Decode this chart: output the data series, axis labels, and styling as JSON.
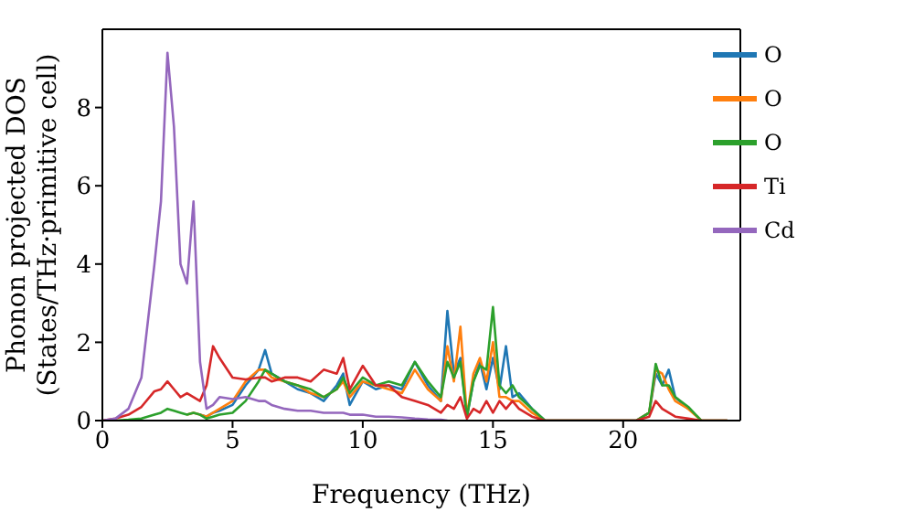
{
  "chart_data": {
    "type": "line",
    "xlabel": "Frequency (THz)",
    "ylabel": "Phonon projected DOS\n(States/THz·primitive cell)",
    "x": [
      0,
      0.5,
      1,
      1.5,
      2,
      2.25,
      2.5,
      2.75,
      3,
      3.25,
      3.5,
      3.75,
      4,
      4.25,
      4.5,
      5,
      5.5,
      6,
      6.25,
      6.5,
      7,
      7.5,
      8,
      8.5,
      9,
      9.25,
      9.5,
      10,
      10.5,
      11,
      11.5,
      12,
      12.5,
      13,
      13.25,
      13.5,
      13.75,
      14,
      14.25,
      14.5,
      14.75,
      15,
      15.25,
      15.5,
      15.75,
      16,
      16.5,
      17,
      18,
      20,
      20.5,
      21,
      21.25,
      21.5,
      21.75,
      22,
      22.5,
      23,
      24
    ],
    "series": [
      {
        "name": "O",
        "color": "#1f77b4",
        "values": [
          null,
          null,
          null,
          null,
          null,
          null,
          null,
          null,
          null,
          null,
          null,
          0.15,
          0.1,
          0.2,
          0.25,
          0.4,
          0.9,
          1.3,
          1.8,
          1.2,
          1.0,
          0.8,
          0.7,
          0.5,
          0.9,
          1.2,
          0.4,
          1.0,
          0.8,
          0.9,
          0.8,
          1.5,
          0.9,
          0.5,
          2.8,
          1.2,
          1.6,
          0.1,
          1.0,
          1.5,
          0.8,
          1.6,
          0.8,
          1.9,
          0.6,
          0.7,
          0.3,
          0,
          0,
          0,
          0,
          0.2,
          1.2,
          0.9,
          1.3,
          0.6,
          0.3,
          null,
          null
        ]
      },
      {
        "name": "O",
        "color": "#ff7f0e",
        "values": [
          null,
          null,
          null,
          null,
          null,
          null,
          null,
          null,
          null,
          0.15,
          0.2,
          0.15,
          0.1,
          0.2,
          0.3,
          0.5,
          1.0,
          1.3,
          1.3,
          1.1,
          1.0,
          0.9,
          0.7,
          0.6,
          0.8,
          1.0,
          0.6,
          1.0,
          0.9,
          0.8,
          0.7,
          1.3,
          0.8,
          0.5,
          1.9,
          1.0,
          2.4,
          0.1,
          1.2,
          1.6,
          1.0,
          2.0,
          0.6,
          0.6,
          0.5,
          0.5,
          0.2,
          0,
          0,
          0,
          0,
          0.2,
          1.3,
          1.2,
          0.8,
          0.5,
          0.3,
          0,
          0
        ]
      },
      {
        "name": "O",
        "color": "#2ca02c",
        "values": [
          0,
          0,
          0.02,
          0.05,
          0.15,
          0.2,
          0.3,
          0.25,
          0.2,
          0.15,
          0.2,
          0.15,
          0.05,
          0.1,
          0.15,
          0.2,
          0.5,
          1.0,
          1.3,
          1.2,
          1.0,
          0.9,
          0.8,
          0.6,
          0.8,
          1.1,
          0.7,
          1.1,
          0.9,
          1.0,
          0.9,
          1.5,
          1.0,
          0.6,
          1.5,
          1.1,
          1.5,
          0.1,
          1.0,
          1.4,
          1.3,
          2.9,
          0.9,
          0.7,
          0.9,
          0.6,
          0.3,
          0,
          0,
          0,
          0,
          0.2,
          1.45,
          0.9,
          0.9,
          0.6,
          0.35,
          0,
          0
        ]
      },
      {
        "name": "Ti",
        "color": "#d62728",
        "values": [
          0,
          0.05,
          0.15,
          0.35,
          0.75,
          0.8,
          1.0,
          0.8,
          0.6,
          0.7,
          0.6,
          0.5,
          0.9,
          1.9,
          1.6,
          1.1,
          1.05,
          1.1,
          1.1,
          1.0,
          1.1,
          1.1,
          1.0,
          1.3,
          1.2,
          1.6,
          0.8,
          1.4,
          0.9,
          0.9,
          0.6,
          0.5,
          0.4,
          0.2,
          0.4,
          0.3,
          0.6,
          0.05,
          0.3,
          0.2,
          0.5,
          0.2,
          0.5,
          0.3,
          0.5,
          0.3,
          0.1,
          0,
          0,
          0,
          0,
          0.1,
          0.5,
          0.3,
          0.2,
          0.1,
          0.05,
          0,
          0
        ]
      },
      {
        "name": "Cd",
        "color": "#9467bd",
        "values": [
          0,
          0.05,
          0.3,
          1.1,
          4.0,
          5.6,
          9.4,
          7.5,
          4.0,
          3.5,
          5.6,
          1.5,
          0.3,
          0.4,
          0.6,
          0.55,
          0.6,
          0.5,
          0.5,
          0.4,
          0.3,
          0.25,
          0.25,
          0.2,
          0.2,
          0.2,
          0.15,
          0.15,
          0.1,
          0.1,
          0.08,
          0.05,
          0.03,
          0.02,
          0,
          null,
          null,
          null,
          null,
          null,
          null,
          null,
          null,
          null,
          null,
          null,
          null,
          null,
          null,
          null,
          null,
          null,
          null,
          null,
          null,
          null,
          null,
          null,
          null
        ]
      }
    ],
    "xlim": [
      0,
      24.5
    ],
    "xticks": [
      0,
      5,
      10,
      15,
      20
    ],
    "ylim": [
      0,
      10
    ],
    "yticks": [
      0,
      2,
      4,
      6,
      8
    ],
    "legend": "top right",
    "marker": "none",
    "line_style": "solid"
  }
}
